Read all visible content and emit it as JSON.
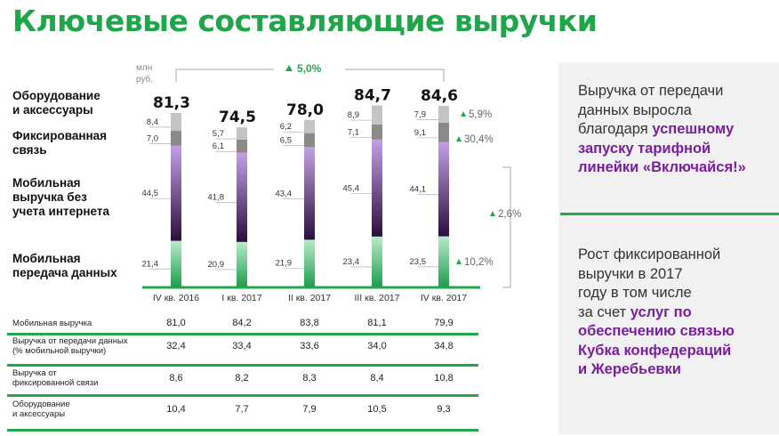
{
  "page": {
    "title": "Ключевые составляющие выручки",
    "unit": [
      "млн",
      "руб."
    ]
  },
  "row_labels": {
    "equipment": [
      "Оборудование",
      "и аксессуары"
    ],
    "fixed": [
      "Фиксированная",
      "связь"
    ],
    "mobile_no_internet": [
      "Мобильная",
      "выручка без",
      "учета интернета"
    ],
    "mobile_data": [
      "Мобильная",
      "передача данных"
    ]
  },
  "chart_data": {
    "type": "bar",
    "stacked": true,
    "categories": [
      "IV кв. 2016",
      "I кв. 2017",
      "II кв. 2017",
      "III кв. 2017",
      "IV кв. 2017"
    ],
    "series": [
      {
        "name": "Мобильная передача данных",
        "values": [
          21.4,
          20.9,
          21.9,
          23.4,
          23.5
        ],
        "labels": [
          "21,4",
          "20,9",
          "21,9",
          "23,4",
          "23,5"
        ],
        "color": "#3dbf6b"
      },
      {
        "name": "Мобильная выручка без учета интернета",
        "values": [
          44.5,
          41.8,
          43.4,
          45.4,
          44.1
        ],
        "labels": [
          "44,5",
          "41,8",
          "43,4",
          "45,4",
          "44,1"
        ],
        "color": "#8e5fb8"
      },
      {
        "name": "Фиксированная связь",
        "values": [
          7.0,
          6.1,
          6.5,
          7.1,
          9.1
        ],
        "labels": [
          "7,0",
          "6,1",
          "6,5",
          "7,1",
          "9,1"
        ],
        "color": "#8a8a8a"
      },
      {
        "name": "Оборудование и аксессуары",
        "values": [
          8.4,
          5.7,
          6.2,
          8.9,
          7.9
        ],
        "labels": [
          "8,4",
          "5,7",
          "6,2",
          "8,9",
          "7,9"
        ],
        "color": "#c4c4c4"
      }
    ],
    "totals": [
      81.3,
      74.5,
      78.0,
      84.7,
      84.6
    ],
    "total_labels": [
      "81,3",
      "74,5",
      "78,0",
      "84,7",
      "84,6"
    ],
    "growth_top": "5,0%",
    "growth_equipment": "5,9%",
    "growth_fixed": "30,4%",
    "growth_mobile": "2,6%",
    "growth_data": "10,2%"
  },
  "table": {
    "rows": [
      {
        "label": [
          "Мобильная выручка"
        ],
        "values": [
          "81,0",
          "84,2",
          "83,8",
          "81,1",
          "79,9"
        ]
      },
      {
        "label": [
          "Выручка от передачи данных",
          "(% мобильной выручки)"
        ],
        "values": [
          "32,4",
          "33,4",
          "33,6",
          "34,0",
          "34,8"
        ]
      },
      {
        "label": [
          "Выручка от",
          "фиксированной связи"
        ],
        "values": [
          "8,6",
          "8,2",
          "8,3",
          "8,4",
          "10,8"
        ]
      },
      {
        "label": [
          "Оборудование",
          "и аксессуары"
        ],
        "values": [
          "10,4",
          "7,7",
          "7,9",
          "10,5",
          "9,3"
        ]
      }
    ]
  },
  "panel": {
    "block1": [
      {
        "text": "Выручка от передачи",
        "highlight": ""
      },
      {
        "text": "данных выросла",
        "highlight": ""
      },
      {
        "text": "благодаря ",
        "highlight": "успешному"
      },
      {
        "text": "",
        "highlight": "запуску тарифной"
      },
      {
        "text": "",
        "highlight": "линейки «Включайся!»"
      }
    ],
    "block2": [
      {
        "text": "Рост фиксированной",
        "highlight": ""
      },
      {
        "text": "выручки в 2017",
        "highlight": ""
      },
      {
        "text": "году в том числе",
        "highlight": ""
      },
      {
        "text": "за счет ",
        "highlight": "услуг по"
      },
      {
        "text": "",
        "highlight": "обеспечению связью"
      },
      {
        "text": "",
        "highlight": "Кубка конфедераций"
      },
      {
        "text": "",
        "highlight": "и Жеребьевки"
      }
    ]
  }
}
